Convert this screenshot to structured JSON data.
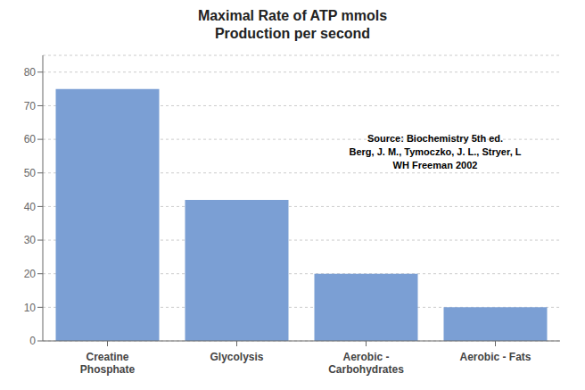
{
  "chart_data": {
    "type": "bar",
    "title": "Maximal Rate of ATP mmols\nProduction per second",
    "annotation": "Source: Biochemistry 5th ed.\nBerg, J. M., Tymoczko, J. L., Stryer, L\nWH Freeman 2002",
    "categories": [
      "Creatine\nPhosphate",
      "Glycolysis",
      "Aerobic -\nCarbohydrates",
      "Aerobic - Fats"
    ],
    "values": [
      75,
      42,
      20,
      10
    ],
    "color": "#7B9FD4",
    "ylim": [
      0,
      85
    ],
    "yticks": [
      0,
      10,
      20,
      30,
      40,
      50,
      60,
      70,
      80
    ],
    "grid": true
  }
}
